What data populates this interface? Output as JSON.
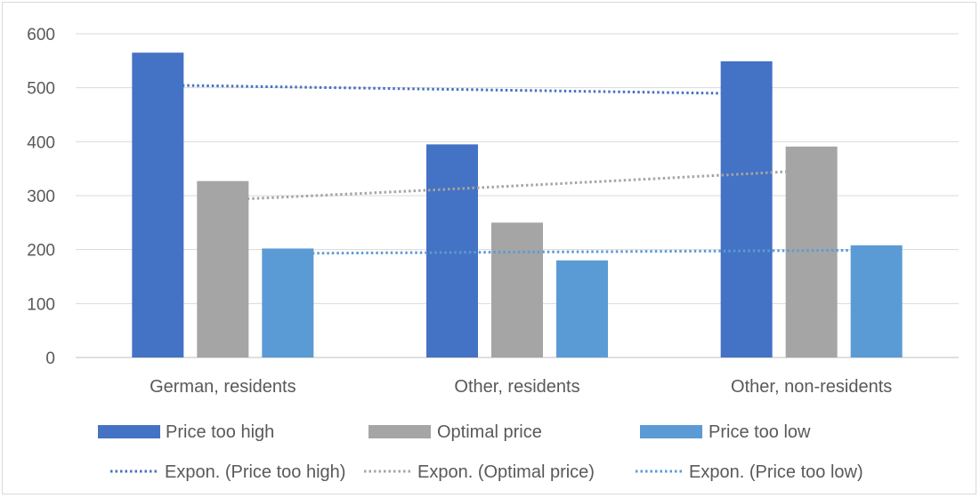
{
  "chart_data": {
    "type": "bar",
    "categories": [
      "German, residents",
      "Other, residents",
      "Other, non-residents"
    ],
    "series": [
      {
        "name": "Price too high",
        "values": [
          565,
          395,
          549
        ],
        "color": "#4472c4"
      },
      {
        "name": "Optimal price",
        "values": [
          327,
          250,
          391
        ],
        "color": "#a5a5a5"
      },
      {
        "name": "Price too low",
        "values": [
          202,
          180,
          208
        ],
        "color": "#5b9bd5"
      }
    ],
    "trendlines": [
      {
        "name": "Expon. (Price too high)",
        "type": "exponential",
        "series": "Price too high",
        "start": 505,
        "end": 489,
        "color": "#4472c4",
        "style": "dotted"
      },
      {
        "name": "Expon. (Optimal price)",
        "type": "exponential",
        "series": "Optimal price",
        "start": 292,
        "end": 347,
        "color": "#a5a5a5",
        "style": "dotted"
      },
      {
        "name": "Expon. (Price too low)",
        "type": "exponential",
        "series": "Price too low",
        "start": 193,
        "end": 199,
        "color": "#5b9bd5",
        "style": "dotted"
      }
    ],
    "ylim": [
      0,
      600
    ],
    "yticks": [
      0,
      100,
      200,
      300,
      400,
      500,
      600
    ],
    "grid": true,
    "legend": "bottom",
    "title": "",
    "xlabel": "",
    "ylabel": ""
  }
}
